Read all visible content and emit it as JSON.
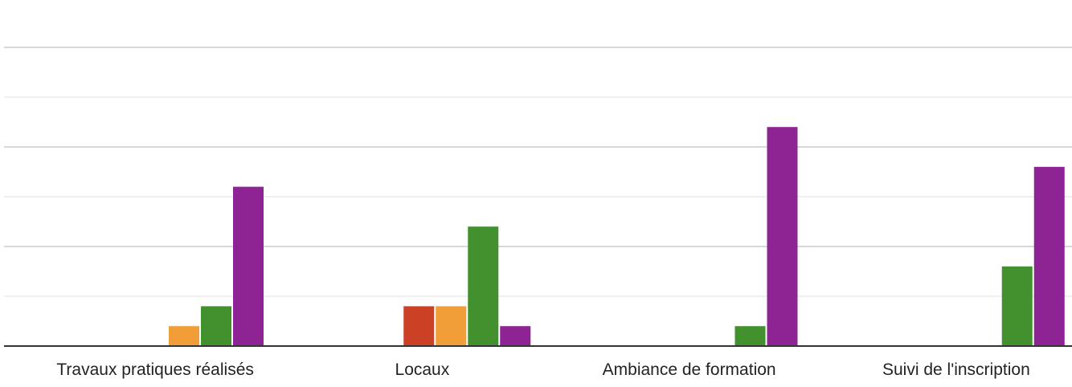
{
  "chart_data": {
    "type": "bar",
    "categories": [
      "Travaux pratiques réalisés",
      "Locaux",
      "Ambiance de formation",
      "Suivi de l'inscription"
    ],
    "series": [
      {
        "values": [
          0,
          2,
          0,
          0
        ],
        "color": "#cc4125"
      },
      {
        "values": [
          1,
          2,
          0,
          0
        ],
        "color": "#f19d38"
      },
      {
        "values": [
          2,
          6,
          1,
          4
        ],
        "color": "#43902f"
      },
      {
        "values": [
          8,
          1,
          11,
          9
        ],
        "color": "#8e2493"
      }
    ],
    "ylim": [
      0,
      15
    ],
    "grid": true,
    "axis_color": "#333333",
    "grid_color": "#cccccc"
  }
}
